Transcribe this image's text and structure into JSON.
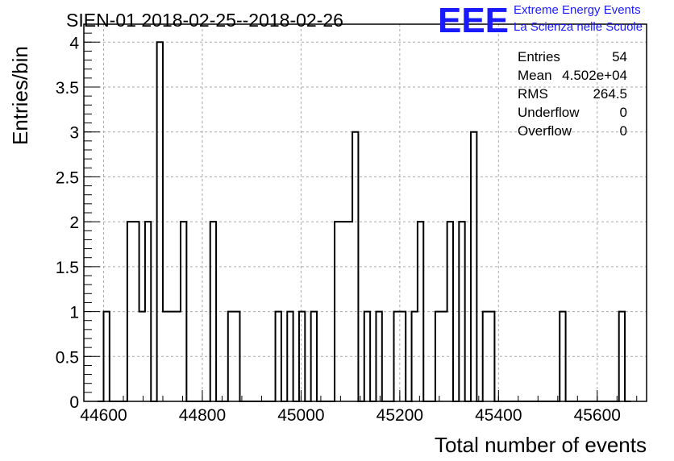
{
  "header": {
    "title": "SIEN-01 2018-02-25--2018-02-26"
  },
  "logo": {
    "mark": "EEE",
    "line1": "Extreme Energy Events",
    "line2": "La Scienza nelle Scuole",
    "color": "#1a1aff"
  },
  "stats": {
    "rows": [
      {
        "label": "Entries",
        "value": "54"
      },
      {
        "label": "Mean",
        "value": "4.502e+04"
      },
      {
        "label": "RMS",
        "value": "264.5"
      },
      {
        "label": "Underflow",
        "value": "0"
      },
      {
        "label": "Overflow",
        "value": "0"
      }
    ]
  },
  "chart_data": {
    "type": "histogram",
    "title": "SIEN-01 2018-02-25--2018-02-26",
    "xlabel": "Total number of events",
    "ylabel": "Entries/bin",
    "xlim": [
      44560,
      45700
    ],
    "ylim": [
      0,
      4.2
    ],
    "bin_width": 12,
    "grid": true,
    "x_ticks": [
      "44600",
      "44800",
      "45000",
      "45200",
      "45400",
      "45600"
    ],
    "y_ticks": [
      "0",
      "0.5",
      "1",
      "1.5",
      "2",
      "2.5",
      "3",
      "3.5",
      "4"
    ],
    "bins": [
      {
        "x": 44588,
        "y": 0
      },
      {
        "x": 44600,
        "y": 1
      },
      {
        "x": 44612,
        "y": 0
      },
      {
        "x": 44624,
        "y": 0
      },
      {
        "x": 44636,
        "y": 0
      },
      {
        "x": 44648,
        "y": 2
      },
      {
        "x": 44660,
        "y": 2
      },
      {
        "x": 44672,
        "y": 1
      },
      {
        "x": 44684,
        "y": 2
      },
      {
        "x": 44696,
        "y": 0
      },
      {
        "x": 44708,
        "y": 4
      },
      {
        "x": 44720,
        "y": 1
      },
      {
        "x": 44732,
        "y": 1
      },
      {
        "x": 44744,
        "y": 1
      },
      {
        "x": 44756,
        "y": 2
      },
      {
        "x": 44768,
        "y": 0
      },
      {
        "x": 44780,
        "y": 0
      },
      {
        "x": 44792,
        "y": 0
      },
      {
        "x": 44804,
        "y": 0
      },
      {
        "x": 44816,
        "y": 2
      },
      {
        "x": 44828,
        "y": 0
      },
      {
        "x": 44840,
        "y": 0
      },
      {
        "x": 44852,
        "y": 1
      },
      {
        "x": 44864,
        "y": 1
      },
      {
        "x": 44876,
        "y": 0
      },
      {
        "x": 44888,
        "y": 0
      },
      {
        "x": 44900,
        "y": 0
      },
      {
        "x": 44912,
        "y": 0
      },
      {
        "x": 44924,
        "y": 0
      },
      {
        "x": 44936,
        "y": 0
      },
      {
        "x": 44948,
        "y": 1
      },
      {
        "x": 44960,
        "y": 0
      },
      {
        "x": 44972,
        "y": 1
      },
      {
        "x": 44984,
        "y": 0
      },
      {
        "x": 44996,
        "y": 1
      },
      {
        "x": 45008,
        "y": 0
      },
      {
        "x": 45020,
        "y": 1
      },
      {
        "x": 45032,
        "y": 0
      },
      {
        "x": 45044,
        "y": 0
      },
      {
        "x": 45056,
        "y": 0
      },
      {
        "x": 45068,
        "y": 2
      },
      {
        "x": 45080,
        "y": 2
      },
      {
        "x": 45092,
        "y": 2
      },
      {
        "x": 45104,
        "y": 3
      },
      {
        "x": 45116,
        "y": 0
      },
      {
        "x": 45128,
        "y": 1
      },
      {
        "x": 45140,
        "y": 0
      },
      {
        "x": 45152,
        "y": 1
      },
      {
        "x": 45164,
        "y": 0
      },
      {
        "x": 45176,
        "y": 0
      },
      {
        "x": 45188,
        "y": 1
      },
      {
        "x": 45200,
        "y": 1
      },
      {
        "x": 45212,
        "y": 0
      },
      {
        "x": 45224,
        "y": 1
      },
      {
        "x": 45236,
        "y": 2
      },
      {
        "x": 45248,
        "y": 0
      },
      {
        "x": 45260,
        "y": 0
      },
      {
        "x": 45272,
        "y": 1
      },
      {
        "x": 45284,
        "y": 1
      },
      {
        "x": 45296,
        "y": 2
      },
      {
        "x": 45308,
        "y": 0
      },
      {
        "x": 45320,
        "y": 2
      },
      {
        "x": 45332,
        "y": 0
      },
      {
        "x": 45344,
        "y": 3
      },
      {
        "x": 45356,
        "y": 0
      },
      {
        "x": 45368,
        "y": 1
      },
      {
        "x": 45380,
        "y": 1
      },
      {
        "x": 45392,
        "y": 0
      },
      {
        "x": 45404,
        "y": 0
      },
      {
        "x": 45416,
        "y": 0
      },
      {
        "x": 45428,
        "y": 0
      },
      {
        "x": 45440,
        "y": 0
      },
      {
        "x": 45452,
        "y": 0
      },
      {
        "x": 45464,
        "y": 0
      },
      {
        "x": 45476,
        "y": 0
      },
      {
        "x": 45488,
        "y": 0
      },
      {
        "x": 45500,
        "y": 0
      },
      {
        "x": 45512,
        "y": 0
      },
      {
        "x": 45524,
        "y": 1
      },
      {
        "x": 45536,
        "y": 0
      },
      {
        "x": 45548,
        "y": 0
      },
      {
        "x": 45560,
        "y": 0
      },
      {
        "x": 45572,
        "y": 0
      },
      {
        "x": 45584,
        "y": 0
      },
      {
        "x": 45596,
        "y": 0
      },
      {
        "x": 45608,
        "y": 0
      },
      {
        "x": 45620,
        "y": 0
      },
      {
        "x": 45632,
        "y": 0
      },
      {
        "x": 45644,
        "y": 1
      },
      {
        "x": 45656,
        "y": 0
      }
    ]
  }
}
